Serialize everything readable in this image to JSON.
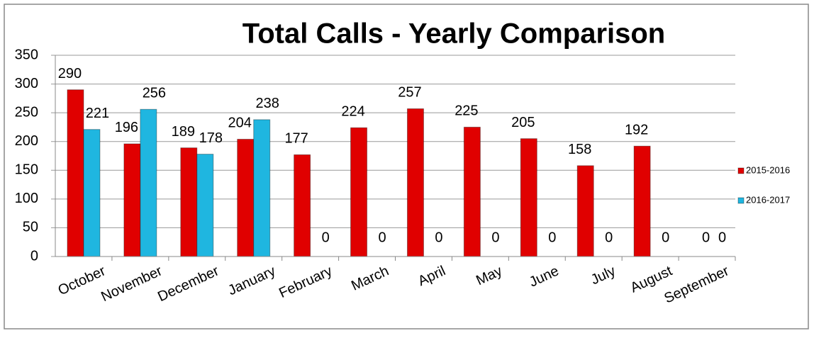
{
  "chart_data": {
    "type": "bar",
    "title": "Total Calls - Yearly Comparison",
    "categories": [
      "October",
      "November",
      "December",
      "January",
      "February",
      "March",
      "April",
      "May",
      "June",
      "July",
      "August",
      "September"
    ],
    "series": [
      {
        "name": "2015-2016",
        "color": "#e00000",
        "values": [
          290,
          196,
          189,
          204,
          177,
          224,
          257,
          225,
          205,
          158,
          192,
          0
        ]
      },
      {
        "name": "2016-2017",
        "color": "#1fb6e0",
        "values": [
          221,
          256,
          178,
          238,
          0,
          0,
          0,
          0,
          0,
          0,
          0,
          0
        ]
      }
    ],
    "ylim": [
      0,
      350
    ],
    "yticks": [
      0,
      50,
      100,
      150,
      200,
      250,
      300,
      350
    ],
    "grid": true,
    "legend": "right"
  }
}
